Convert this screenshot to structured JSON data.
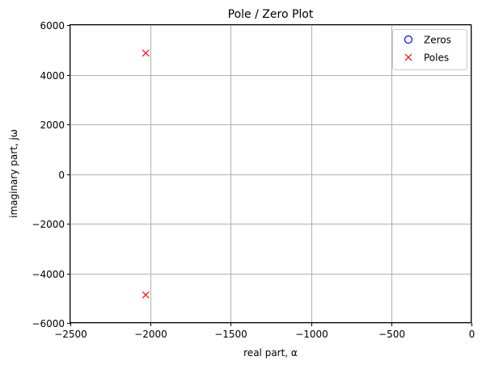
{
  "chart_data": {
    "type": "scatter",
    "title": "Pole / Zero Plot",
    "xlabel": "real part, α",
    "ylabel": "imaginary part, jω",
    "xlim": [
      -2500,
      0
    ],
    "ylim": [
      -6000,
      6000
    ],
    "xticks": [
      -2500,
      -2000,
      -1500,
      -1000,
      -500,
      0
    ],
    "xtick_labels": [
      "−2500",
      "−2000",
      "−1500",
      "−1000",
      "−500",
      "0"
    ],
    "yticks": [
      -6000,
      -4000,
      -2000,
      0,
      2000,
      4000,
      6000
    ],
    "ytick_labels": [
      "−6000",
      "−4000",
      "−2000",
      "0",
      "2000",
      "4000",
      "6000"
    ],
    "grid": true,
    "legend": "top-right",
    "series": [
      {
        "name": "Zeros",
        "marker": "o",
        "color": "#0000ff",
        "points": []
      },
      {
        "name": "Poles",
        "marker": "x",
        "color": "#ff0000",
        "points": [
          {
            "x": -2030,
            "y": 4870
          },
          {
            "x": -2030,
            "y": -4870
          }
        ]
      }
    ]
  }
}
